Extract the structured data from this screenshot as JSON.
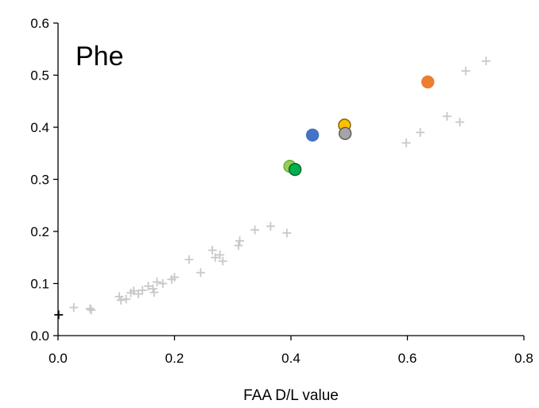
{
  "chart_data": {
    "type": "scatter",
    "title": "",
    "annotation": "Phe",
    "xlabel": "FAA D/L value",
    "ylabel": "",
    "xlim": [
      0,
      0.8
    ],
    "ylim": [
      0,
      0.6
    ],
    "xticks": [
      0,
      0.2,
      0.4,
      0.6,
      0.8
    ],
    "xtick_labels": [
      "0.0",
      "0.2",
      "0.4",
      "0.6",
      "0.8"
    ],
    "yticks": [
      0,
      0.1,
      0.2,
      0.3,
      0.4,
      0.5,
      0.6
    ],
    "ytick_labels": [
      "0.0",
      "0.1",
      "0.2",
      "0.3",
      "0.4",
      "0.5",
      "0.6"
    ],
    "grid": false,
    "legend": "none",
    "series": [
      {
        "marker": "plus",
        "color": "#c8c8c8",
        "points": [
          [
            0.027,
            0.054
          ],
          [
            0.055,
            0.052
          ],
          [
            0.057,
            0.049
          ],
          [
            0.105,
            0.075
          ],
          [
            0.108,
            0.068
          ],
          [
            0.117,
            0.07
          ],
          [
            0.125,
            0.082
          ],
          [
            0.13,
            0.086
          ],
          [
            0.138,
            0.08
          ],
          [
            0.145,
            0.087
          ],
          [
            0.155,
            0.095
          ],
          [
            0.163,
            0.09
          ],
          [
            0.165,
            0.083
          ],
          [
            0.17,
            0.103
          ],
          [
            0.18,
            0.1
          ],
          [
            0.195,
            0.108
          ],
          [
            0.2,
            0.112
          ],
          [
            0.225,
            0.146
          ],
          [
            0.245,
            0.121
          ],
          [
            0.265,
            0.164
          ],
          [
            0.27,
            0.15
          ],
          [
            0.278,
            0.155
          ],
          [
            0.283,
            0.143
          ],
          [
            0.31,
            0.173
          ],
          [
            0.312,
            0.182
          ],
          [
            0.338,
            0.203
          ],
          [
            0.365,
            0.21
          ],
          [
            0.393,
            0.197
          ],
          [
            0.598,
            0.37
          ],
          [
            0.622,
            0.39
          ],
          [
            0.668,
            0.421
          ],
          [
            0.69,
            0.41
          ],
          [
            0.7,
            0.508
          ],
          [
            0.735,
            0.527
          ]
        ]
      },
      {
        "marker": "plus",
        "color": "#000000",
        "points": [
          [
            0.001,
            0.04
          ]
        ]
      },
      {
        "marker": "circle",
        "color": "#4472c4",
        "stroke": "#4472c4",
        "points": [
          [
            0.437,
            0.385
          ]
        ]
      },
      {
        "marker": "circle",
        "color": "#ffc000",
        "stroke": "#7f6000",
        "points": [
          [
            0.492,
            0.404
          ]
        ]
      },
      {
        "marker": "circle",
        "color": "#a5a5a5",
        "stroke": "#595959",
        "points": [
          [
            0.493,
            0.388
          ]
        ]
      },
      {
        "marker": "circle",
        "color": "#ed7d31",
        "stroke": "#ed7d31",
        "points": [
          [
            0.635,
            0.487
          ]
        ]
      },
      {
        "marker": "circle",
        "color": "#92d050",
        "stroke": "#70ad47",
        "points": [
          [
            0.398,
            0.325
          ]
        ]
      },
      {
        "marker": "circle",
        "color": "#00b050",
        "stroke": "#00602b",
        "points": [
          [
            0.407,
            0.319
          ]
        ]
      }
    ]
  }
}
